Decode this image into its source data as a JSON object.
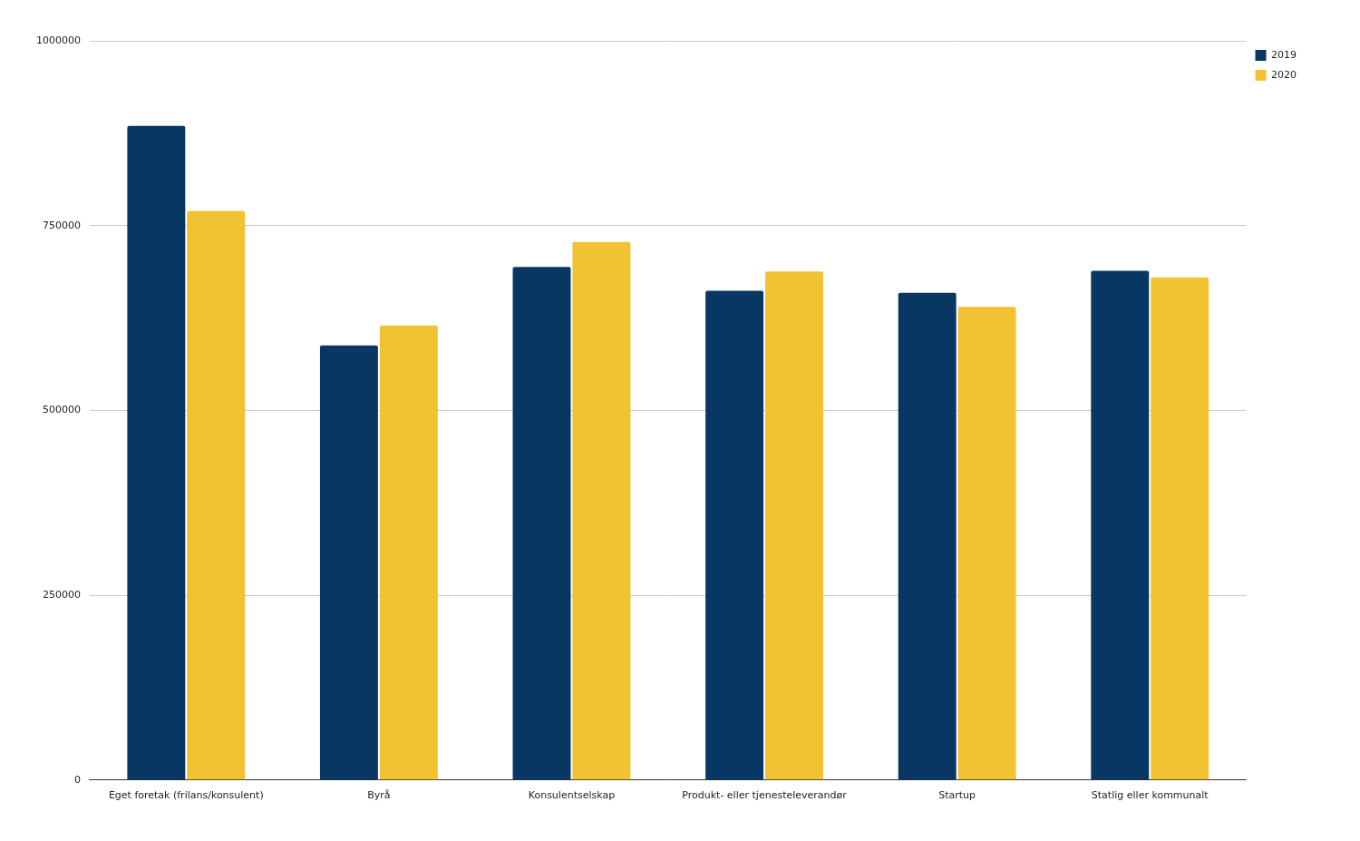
{
  "chart_data": {
    "type": "bar",
    "categories": [
      "Eget foretak (frilans/konsulent)",
      "Byrå",
      "Konsulentselskap",
      "Produkt- eller tjenesteleverandør",
      "Startup",
      "Statlig eller kommunalt"
    ],
    "series": [
      {
        "name": "2019",
        "color": "#083763",
        "values": [
          885000,
          588000,
          694000,
          662000,
          659000,
          689000
        ]
      },
      {
        "name": "2020",
        "color": "#f1c232",
        "values": [
          770000,
          615000,
          728000,
          688000,
          640000,
          680000
        ]
      }
    ],
    "ylim": [
      0,
      1000000
    ],
    "yticks": [
      0,
      250000,
      500000,
      750000,
      1000000
    ],
    "grid": true,
    "legend": "top-right"
  }
}
